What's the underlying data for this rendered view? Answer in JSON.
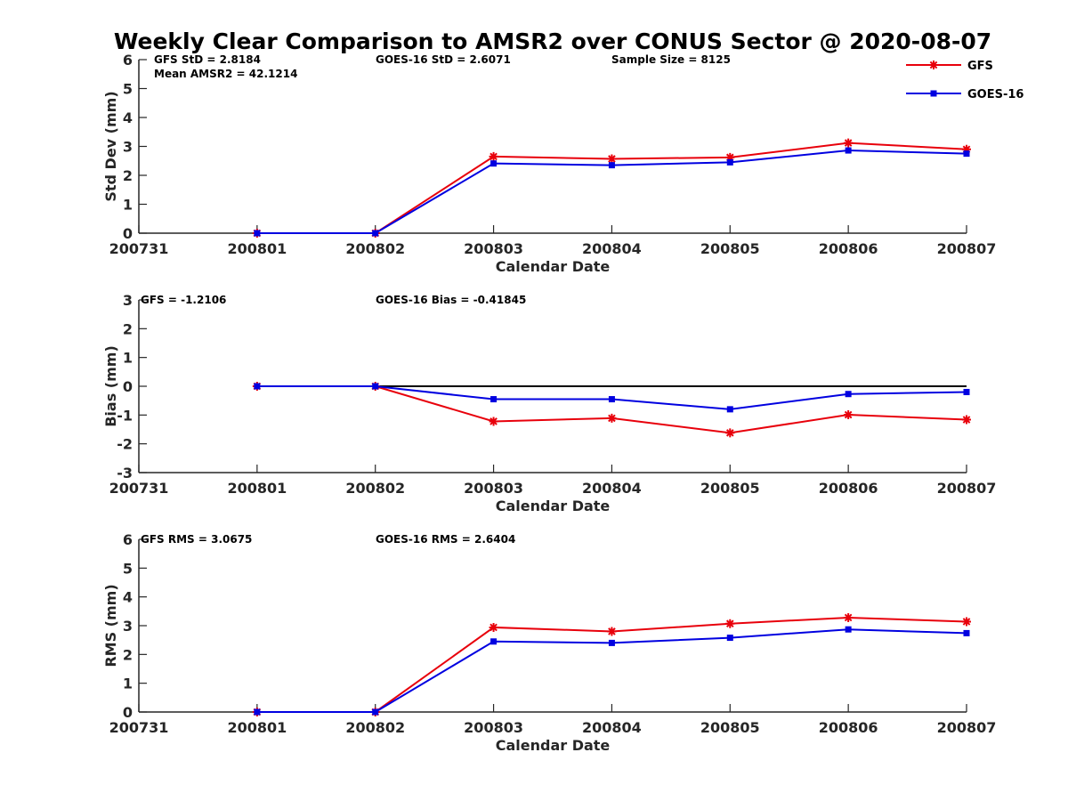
{
  "title": "Weekly Clear Comparison to AMSR2 over CONUS Sector @ 2020-08-07",
  "legend": {
    "placement": "top-right",
    "entries": [
      {
        "name": "GFS",
        "color": "#e8000b",
        "marker": "star"
      },
      {
        "name": "GOES-16",
        "color": "#0000e0",
        "marker": "square"
      }
    ]
  },
  "chart_data": [
    {
      "type": "line",
      "panel": "std",
      "xlabel": "Calendar Date",
      "ylabel": "Std Dev (mm)",
      "x": [
        "200731",
        "200801",
        "200802",
        "200803",
        "200804",
        "200805",
        "200806",
        "200807"
      ],
      "ylim": [
        0,
        6
      ],
      "yticks": [
        "0",
        "1",
        "2",
        "3",
        "4",
        "5",
        "6"
      ],
      "annotations": [
        "GFS StD = 2.8184",
        "GOES-16 StD = 2.6071",
        "Sample Size = 8125",
        "Mean AMSR2 = 42.1214"
      ],
      "series": [
        {
          "name": "GFS",
          "color": "#e8000b",
          "marker": "star",
          "values": [
            null,
            0.0,
            0.0,
            2.65,
            2.57,
            2.62,
            3.12,
            2.9
          ]
        },
        {
          "name": "GOES-16",
          "color": "#0000e0",
          "marker": "square",
          "values": [
            null,
            0.0,
            0.0,
            2.41,
            2.35,
            2.45,
            2.86,
            2.75
          ]
        }
      ]
    },
    {
      "type": "line",
      "panel": "bias",
      "xlabel": "Calendar Date",
      "ylabel": "Bias (mm)",
      "x": [
        "200731",
        "200801",
        "200802",
        "200803",
        "200804",
        "200805",
        "200806",
        "200807"
      ],
      "ylim": [
        -3,
        3
      ],
      "yticks": [
        "-3",
        "-2",
        "-1",
        "0",
        "1",
        "2",
        "3"
      ],
      "zero_line": true,
      "annotations": [
        "GFS = -1.2106",
        "GOES-16 Bias  = -0.41845"
      ],
      "series": [
        {
          "name": "GFS",
          "color": "#e8000b",
          "marker": "star",
          "values": [
            null,
            0.0,
            0.0,
            -1.22,
            -1.11,
            -1.62,
            -0.99,
            -1.16
          ]
        },
        {
          "name": "GOES-16",
          "color": "#0000e0",
          "marker": "square",
          "values": [
            null,
            0.0,
            0.0,
            -0.45,
            -0.45,
            -0.8,
            -0.27,
            -0.2
          ]
        }
      ]
    },
    {
      "type": "line",
      "panel": "rms",
      "xlabel": "Calendar Date",
      "ylabel": "RMS (mm)",
      "x": [
        "200731",
        "200801",
        "200802",
        "200803",
        "200804",
        "200805",
        "200806",
        "200807"
      ],
      "ylim": [
        0,
        6
      ],
      "yticks": [
        "0",
        "1",
        "2",
        "3",
        "4",
        "5",
        "6"
      ],
      "annotations": [
        "GFS RMS = 3.0675",
        "GOES-16 RMS = 2.6404"
      ],
      "series": [
        {
          "name": "GFS",
          "color": "#e8000b",
          "marker": "star",
          "values": [
            null,
            0.0,
            0.0,
            2.94,
            2.8,
            3.07,
            3.28,
            3.14
          ]
        },
        {
          "name": "GOES-16",
          "color": "#0000e0",
          "marker": "square",
          "values": [
            null,
            0.0,
            0.0,
            2.45,
            2.4,
            2.58,
            2.87,
            2.74
          ]
        }
      ]
    }
  ]
}
